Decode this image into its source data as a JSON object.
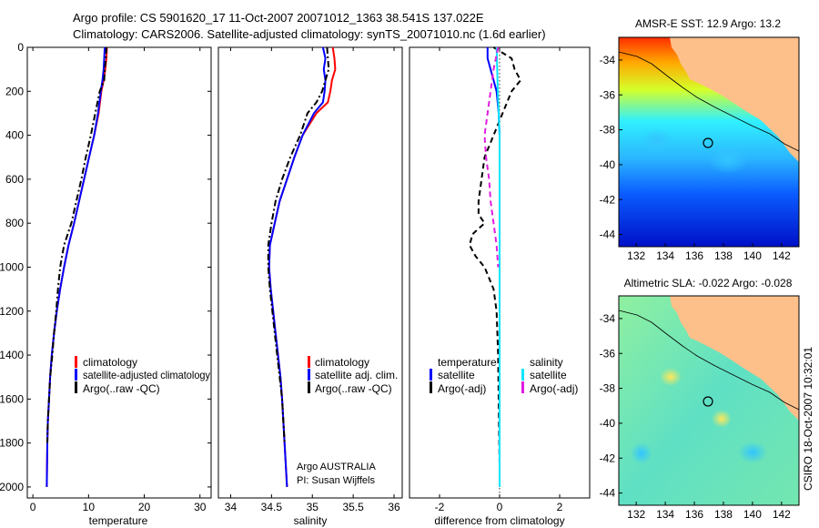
{
  "header": {
    "line1": "Argo profile: CS 5901620_17 11-Oct-2007 20071012_1363 38.541S 137.022E",
    "line2": "Climatology: CARS2006. Satellite-adjusted climatology: synTS_20071010.nc (1.6d earlier)"
  },
  "credits": {
    "argo": "Argo AUSTRALIA",
    "pi": "PI: Susan Wijffels",
    "csiro": "CSIRO 18-Oct-2007 10:32:01"
  },
  "colors": {
    "climatology": "#ff0000",
    "satellite": "#0000ff",
    "argo": "#000000",
    "cyan": "#00e5ff",
    "magenta": "#e01ce0",
    "land": "#fdc08a"
  },
  "panels": {
    "temperature": {
      "xlabel": "temperature",
      "xticks": [
        0,
        10,
        20,
        30
      ],
      "legend": [
        "climatology",
        "satellite-adjusted climatology",
        "Argo(..raw -QC)"
      ]
    },
    "salinity": {
      "xlabel": "salinity",
      "xticks": [
        "34",
        "34.5",
        "35",
        "35.5",
        "36"
      ],
      "legend": [
        "climatology",
        "satellite adj. clim.",
        "Argo(..raw -QC)"
      ]
    },
    "difference": {
      "xlabel": "difference from climatology",
      "xticks": [
        "-2",
        "0",
        "2"
      ],
      "legend_left_title": "temperature",
      "legend_left": [
        "satellite",
        "Argo(-adj)"
      ],
      "legend_right_title": "salinity",
      "legend_right": [
        "satellite",
        "Argo(-adj)"
      ]
    }
  },
  "maps": {
    "sst": {
      "title": "AMSR-E SST: 12.9 Argo: 13.2",
      "xticks": [
        "132",
        "134",
        "136",
        "138",
        "140",
        "142"
      ],
      "yticks": [
        "-34",
        "-36",
        "-38",
        "-40",
        "-42",
        "-44"
      ]
    },
    "sla": {
      "title": "Altimetric SLA: -0.022 Argo: -0.028",
      "xticks": [
        "132",
        "134",
        "136",
        "138",
        "140",
        "142"
      ],
      "yticks": [
        "-34",
        "-36",
        "-38",
        "-40",
        "-42",
        "-44"
      ]
    },
    "argo_position": {
      "lon": 137.022,
      "lat": -38.541
    }
  },
  "chart_data": [
    {
      "type": "line",
      "xlabel": "temperature",
      "ylabel": "",
      "xlim": [
        -1,
        32
      ],
      "ylim": [
        2050,
        0
      ],
      "yticks": [
        0,
        200,
        400,
        600,
        800,
        1000,
        1200,
        1400,
        1600,
        1800,
        2000
      ],
      "series": [
        {
          "name": "climatology",
          "style": "solid",
          "color": "#ff0000",
          "x": [
            13.3,
            13.2,
            13.0,
            12.7,
            12.3,
            11.8,
            11.0,
            10.1,
            9.2,
            8.3,
            7.4,
            6.4,
            5.6,
            4.9,
            4.3,
            3.8,
            3.4,
            3.1,
            2.9,
            2.7,
            2.6,
            2.5
          ],
          "y": [
            0,
            50,
            100,
            150,
            200,
            300,
            400,
            500,
            600,
            700,
            800,
            900,
            1000,
            1100,
            1200,
            1300,
            1400,
            1500,
            1600,
            1700,
            1800,
            2000
          ]
        },
        {
          "name": "satellite-adjusted climatology",
          "style": "solid",
          "color": "#0000ff",
          "x": [
            12.9,
            12.8,
            12.7,
            12.5,
            12.2,
            11.7,
            11.0,
            10.1,
            9.2,
            8.3,
            7.4,
            6.4,
            5.6,
            4.9,
            4.3,
            3.8,
            3.4,
            3.1,
            2.9,
            2.7,
            2.6,
            2.5
          ],
          "y": [
            0,
            50,
            100,
            150,
            200,
            300,
            400,
            500,
            600,
            700,
            800,
            900,
            1000,
            1100,
            1200,
            1300,
            1400,
            1500,
            1600,
            1700,
            1800,
            2000
          ]
        },
        {
          "name": "Argo(..raw -QC)",
          "style": "dashdot",
          "color": "#000000",
          "x": [
            13.2,
            13.1,
            12.9,
            12.8,
            12.0,
            11.2,
            10.4,
            9.5,
            8.7,
            7.8,
            6.9,
            5.6,
            4.9,
            4.5,
            4.2,
            3.8,
            3.5,
            3.1,
            2.9,
            2.7,
            2.6
          ],
          "y": [
            0,
            50,
            100,
            150,
            200,
            300,
            400,
            500,
            600,
            700,
            800,
            900,
            1000,
            1100,
            1200,
            1300,
            1400,
            1500,
            1600,
            1700,
            1800
          ]
        }
      ]
    },
    {
      "type": "line",
      "xlabel": "salinity",
      "ylabel": "",
      "xlim": [
        33.85,
        36.1
      ],
      "ylim": [
        2050,
        0
      ],
      "series": [
        {
          "name": "climatology",
          "style": "solid",
          "color": "#ff0000",
          "x": [
            35.25,
            35.27,
            35.28,
            35.24,
            35.22,
            35.19,
            35.05,
            34.88,
            34.78,
            34.69,
            34.6,
            34.54,
            34.48,
            34.47,
            34.49,
            34.52,
            34.55,
            34.58,
            34.61,
            34.63,
            34.66,
            34.69
          ],
          "y": [
            0,
            50,
            100,
            150,
            200,
            250,
            300,
            400,
            500,
            600,
            700,
            800,
            900,
            1000,
            1100,
            1200,
            1300,
            1400,
            1500,
            1600,
            1800,
            2000
          ]
        },
        {
          "name": "satellite adj. clim.",
          "style": "solid",
          "color": "#0000ff",
          "x": [
            35.13,
            35.16,
            35.14,
            35.16,
            35.15,
            35.13,
            35.02,
            34.88,
            34.78,
            34.69,
            34.6,
            34.54,
            34.48,
            34.47,
            34.49,
            34.52,
            34.55,
            34.58,
            34.61,
            34.63,
            34.66,
            34.69
          ],
          "y": [
            0,
            50,
            100,
            150,
            200,
            250,
            300,
            400,
            500,
            600,
            700,
            800,
            900,
            1000,
            1100,
            1200,
            1300,
            1400,
            1500,
            1600,
            1800,
            2000
          ]
        },
        {
          "name": "Argo(..raw -QC)",
          "style": "dashdot",
          "color": "#000000",
          "x": [
            35.18,
            35.19,
            35.2,
            35.12,
            35.05,
            34.94,
            34.85,
            34.73,
            34.63,
            34.55,
            34.5,
            34.46,
            34.46,
            34.48,
            34.51,
            34.54,
            34.57,
            34.6,
            34.63,
            34.66
          ],
          "y": [
            0,
            50,
            100,
            200,
            250,
            300,
            400,
            500,
            600,
            700,
            800,
            900,
            1000,
            1100,
            1200,
            1300,
            1400,
            1500,
            1600,
            1800
          ]
        }
      ]
    },
    {
      "type": "line",
      "xlabel": "difference from climatology",
      "ylabel": "",
      "xlim": [
        -3,
        3
      ],
      "ylim": [
        2050,
        0
      ],
      "series": [
        {
          "name": "temperature satellite",
          "style": "solid",
          "color": "#0000ff",
          "x": [
            -0.4,
            -0.4,
            -0.3,
            -0.2,
            -0.1,
            -0.03,
            0,
            0,
            0,
            0,
            0,
            0,
            0,
            0
          ],
          "y": [
            0,
            50,
            100,
            150,
            200,
            300,
            400,
            600,
            800,
            1000,
            1200,
            1400,
            1600,
            2000
          ]
        },
        {
          "name": "temperature Argo(-adj)",
          "style": "dashed",
          "color": "#000000",
          "x": [
            -0.2,
            0.4,
            0.5,
            0.7,
            0.4,
            0.1,
            -0.2,
            -0.5,
            -0.6,
            -0.7,
            -0.7,
            -0.5,
            -0.9,
            -1.0,
            -0.8,
            -0.5,
            -0.2,
            -0.1,
            -0.05,
            -0.02,
            0
          ],
          "y": [
            0,
            50,
            100,
            150,
            200,
            300,
            400,
            500,
            600,
            700,
            760,
            800,
            850,
            900,
            950,
            1000,
            1100,
            1200,
            1400,
            1700,
            1900
          ]
        },
        {
          "name": "salinity satellite",
          "style": "solid",
          "color": "#00e5ff",
          "x": [
            -0.1,
            -0.08,
            -0.06,
            -0.03,
            0,
            0,
            0,
            0,
            0,
            0,
            0
          ],
          "y": [
            0,
            100,
            200,
            300,
            400,
            600,
            800,
            1000,
            1400,
            1700,
            2000
          ]
        },
        {
          "name": "salinity Argo(-adj)",
          "style": "dashed",
          "color": "#e01ce0",
          "x": [
            -0.05,
            -0.2,
            -0.3,
            -0.4,
            -0.5,
            -0.45,
            -0.35,
            -0.3,
            -0.2,
            -0.1,
            -0.05
          ],
          "y": [
            0,
            100,
            200,
            300,
            400,
            500,
            600,
            700,
            800,
            900,
            1000
          ]
        }
      ]
    }
  ]
}
